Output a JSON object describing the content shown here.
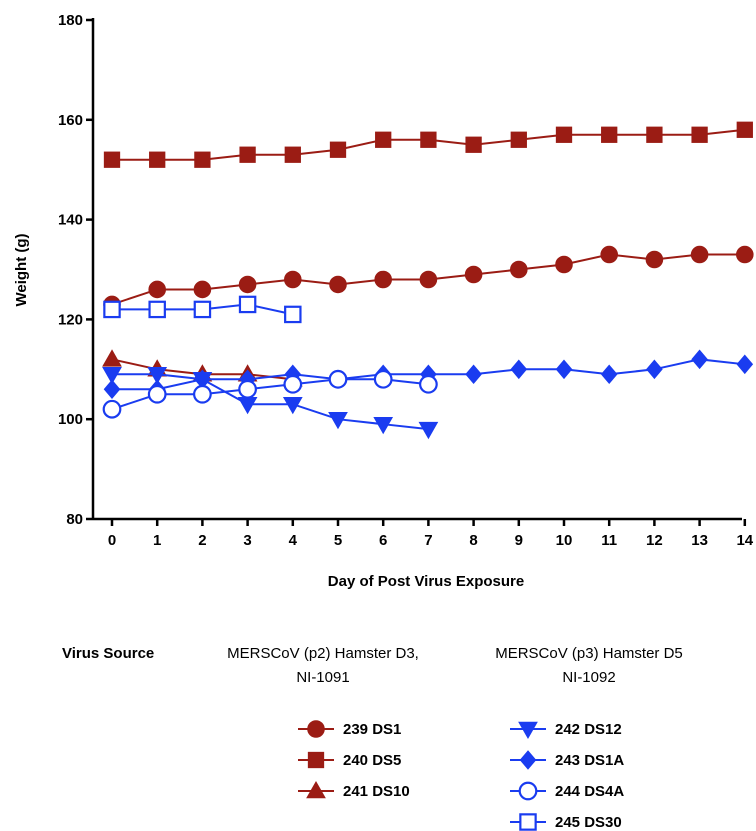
{
  "chart_data": {
    "type": "line",
    "title": "",
    "xlabel": "Day of Post Virus Exposure",
    "ylabel": "Weight (g)",
    "xlim": [
      0,
      14
    ],
    "ylim": [
      80,
      180
    ],
    "x_ticks": [
      "0",
      "1",
      "2",
      "3",
      "4",
      "5",
      "6",
      "7",
      "8",
      "9",
      "10",
      "11",
      "12",
      "13",
      "14"
    ],
    "y_ticks": [
      "80",
      "100",
      "120",
      "140",
      "160",
      "180"
    ],
    "grid": false,
    "colors": {
      "red": "#9b1c14",
      "blue": "#1a3cf0"
    },
    "series": [
      {
        "name": "239 DS1",
        "color": "#9b1c14",
        "marker": "circle-filled",
        "x": [
          0,
          1,
          2,
          3,
          4,
          5,
          6,
          7,
          8,
          9,
          10,
          11,
          12,
          13,
          14
        ],
        "values": [
          123,
          126,
          126,
          127,
          128,
          127,
          128,
          128,
          129,
          130,
          131,
          133,
          132,
          133,
          133
        ]
      },
      {
        "name": "240 DS5",
        "color": "#9b1c14",
        "marker": "square-filled",
        "x": [
          0,
          1,
          2,
          3,
          4,
          5,
          6,
          7,
          8,
          9,
          10,
          11,
          12,
          13,
          14
        ],
        "values": [
          152,
          152,
          152,
          153,
          153,
          154,
          156,
          156,
          155,
          156,
          157,
          157,
          157,
          157,
          158
        ]
      },
      {
        "name": "241 DS10",
        "color": "#9b1c14",
        "marker": "triangle-up-filled",
        "x": [
          0,
          1,
          2,
          3,
          4
        ],
        "values": [
          112,
          110,
          109,
          109,
          108
        ]
      },
      {
        "name": "242 DS12",
        "color": "#1a3cf0",
        "marker": "triangle-down-filled",
        "x": [
          0,
          1,
          2,
          3,
          4,
          5,
          6,
          7
        ],
        "values": [
          109,
          109,
          108,
          103,
          103,
          100,
          99,
          98
        ]
      },
      {
        "name": "243 DS1A",
        "color": "#1a3cf0",
        "marker": "diamond-filled",
        "x": [
          0,
          1,
          2,
          3,
          4,
          5,
          6,
          7,
          8,
          9,
          10,
          11,
          12,
          13,
          14
        ],
        "values": [
          106,
          106,
          108,
          108,
          109,
          108,
          109,
          109,
          109,
          110,
          110,
          109,
          110,
          112,
          111
        ]
      },
      {
        "name": "244 DS4A",
        "color": "#1a3cf0",
        "marker": "circle-open",
        "x": [
          0,
          1,
          2,
          3,
          4,
          5,
          6,
          7
        ],
        "values": [
          102,
          105,
          105,
          106,
          107,
          108,
          108,
          107
        ]
      },
      {
        "name": "245 DS30",
        "color": "#1a3cf0",
        "marker": "square-open",
        "x": [
          0,
          1,
          2,
          3,
          4
        ],
        "values": [
          122,
          122,
          122,
          123,
          121
        ]
      }
    ],
    "legend": {
      "virus_source_label": "Virus Source",
      "group1_source_line1": "MERSCoV (p2) Hamster D3,",
      "group1_source_line2": "NI-1091",
      "group2_source_line1": "MERSCoV (p3) Hamster D5",
      "group2_source_line2": "NI-1092",
      "placement": "bottom"
    }
  }
}
